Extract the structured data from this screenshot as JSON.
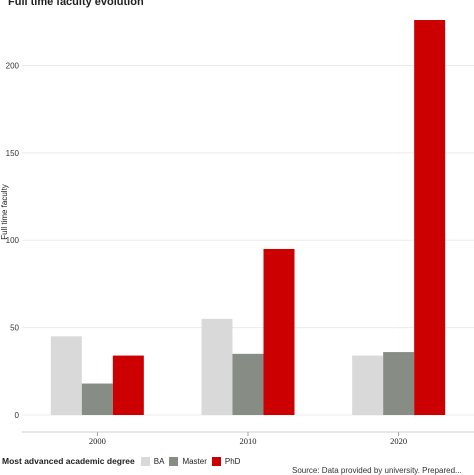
{
  "chart_data": {
    "type": "bar",
    "title": "Full time faculty evolution",
    "xlabel": "",
    "ylabel": "Full time faculty",
    "categories": [
      "2000",
      "2010",
      "2020"
    ],
    "series": [
      {
        "name": "BA",
        "color": "#d9d9d9",
        "values": [
          45,
          55,
          34
        ]
      },
      {
        "name": "Master",
        "color": "#878c85",
        "values": [
          18,
          35,
          36
        ]
      },
      {
        "name": "PhD",
        "color": "#cc0000",
        "values": [
          34,
          95,
          226
        ]
      }
    ],
    "yticks": [
      0,
      50,
      100,
      150,
      200
    ],
    "ylim": [
      0,
      226
    ],
    "grid": true,
    "legend_title": "Most advanced academic degree",
    "legend_position": "bottom",
    "source": "Source: Data provided by university. Prepared..."
  }
}
